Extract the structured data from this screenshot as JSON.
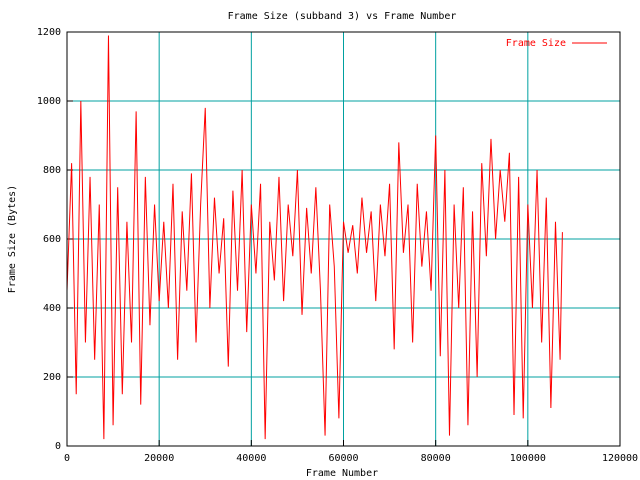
{
  "chart_data": {
    "type": "line",
    "title": "Frame Size (subband 3) vs Frame Number",
    "xlabel": "Frame Number",
    "ylabel": "Frame Size (Bytes)",
    "xlim": [
      0,
      120000
    ],
    "ylim": [
      0,
      1200
    ],
    "xticks": [
      0,
      20000,
      40000,
      60000,
      80000,
      100000,
      120000
    ],
    "yticks": [
      0,
      200,
      400,
      600,
      800,
      1000,
      1200
    ],
    "grid": true,
    "grid_color": "#00a0a0",
    "legend": "top-right",
    "x": [
      0,
      1000,
      2000,
      3000,
      4000,
      5000,
      6000,
      7000,
      8000,
      9000,
      10000,
      11000,
      12000,
      13000,
      14000,
      15000,
      16000,
      17000,
      18000,
      19000,
      20000,
      21000,
      22000,
      23000,
      24000,
      25000,
      26000,
      27000,
      28000,
      29000,
      30000,
      31000,
      32000,
      33000,
      34000,
      35000,
      36000,
      37000,
      38000,
      39000,
      40000,
      41000,
      42000,
      43000,
      44000,
      45000,
      46000,
      47000,
      48000,
      49000,
      50000,
      51000,
      52000,
      53000,
      54000,
      55000,
      56000,
      57000,
      58000,
      59000,
      60000,
      61000,
      62000,
      63000,
      64000,
      65000,
      66000,
      67000,
      68000,
      69000,
      70000,
      71000,
      72000,
      73000,
      74000,
      75000,
      76000,
      77000,
      78000,
      79000,
      80000,
      81000,
      82000,
      83000,
      84000,
      85000,
      86000,
      87000,
      88000,
      89000,
      90000,
      91000,
      92000,
      93000,
      94000,
      95000,
      96000,
      97000,
      98000,
      99000,
      100000,
      101000,
      102000,
      103000,
      104000,
      105000,
      106000,
      107000,
      107500
    ],
    "series": [
      {
        "name": "Frame Size",
        "color": "#ff0000",
        "values": [
          450,
          820,
          150,
          1000,
          300,
          780,
          250,
          700,
          20,
          1190,
          60,
          750,
          150,
          650,
          300,
          970,
          120,
          780,
          350,
          700,
          420,
          650,
          400,
          760,
          250,
          680,
          450,
          790,
          300,
          700,
          980,
          400,
          720,
          500,
          660,
          230,
          740,
          450,
          800,
          330,
          700,
          500,
          760,
          20,
          650,
          480,
          780,
          420,
          700,
          550,
          800,
          380,
          690,
          500,
          750,
          450,
          30,
          700,
          520,
          80,
          650,
          560,
          640,
          500,
          720,
          560,
          680,
          420,
          700,
          550,
          760,
          280,
          880,
          560,
          700,
          300,
          760,
          520,
          680,
          450,
          900,
          260,
          800,
          30,
          700,
          400,
          750,
          60,
          680,
          200,
          820,
          550,
          890,
          600,
          800,
          650,
          850,
          90,
          780,
          80,
          700,
          400,
          800,
          300,
          720,
          110,
          650,
          250,
          620
        ]
      }
    ]
  }
}
